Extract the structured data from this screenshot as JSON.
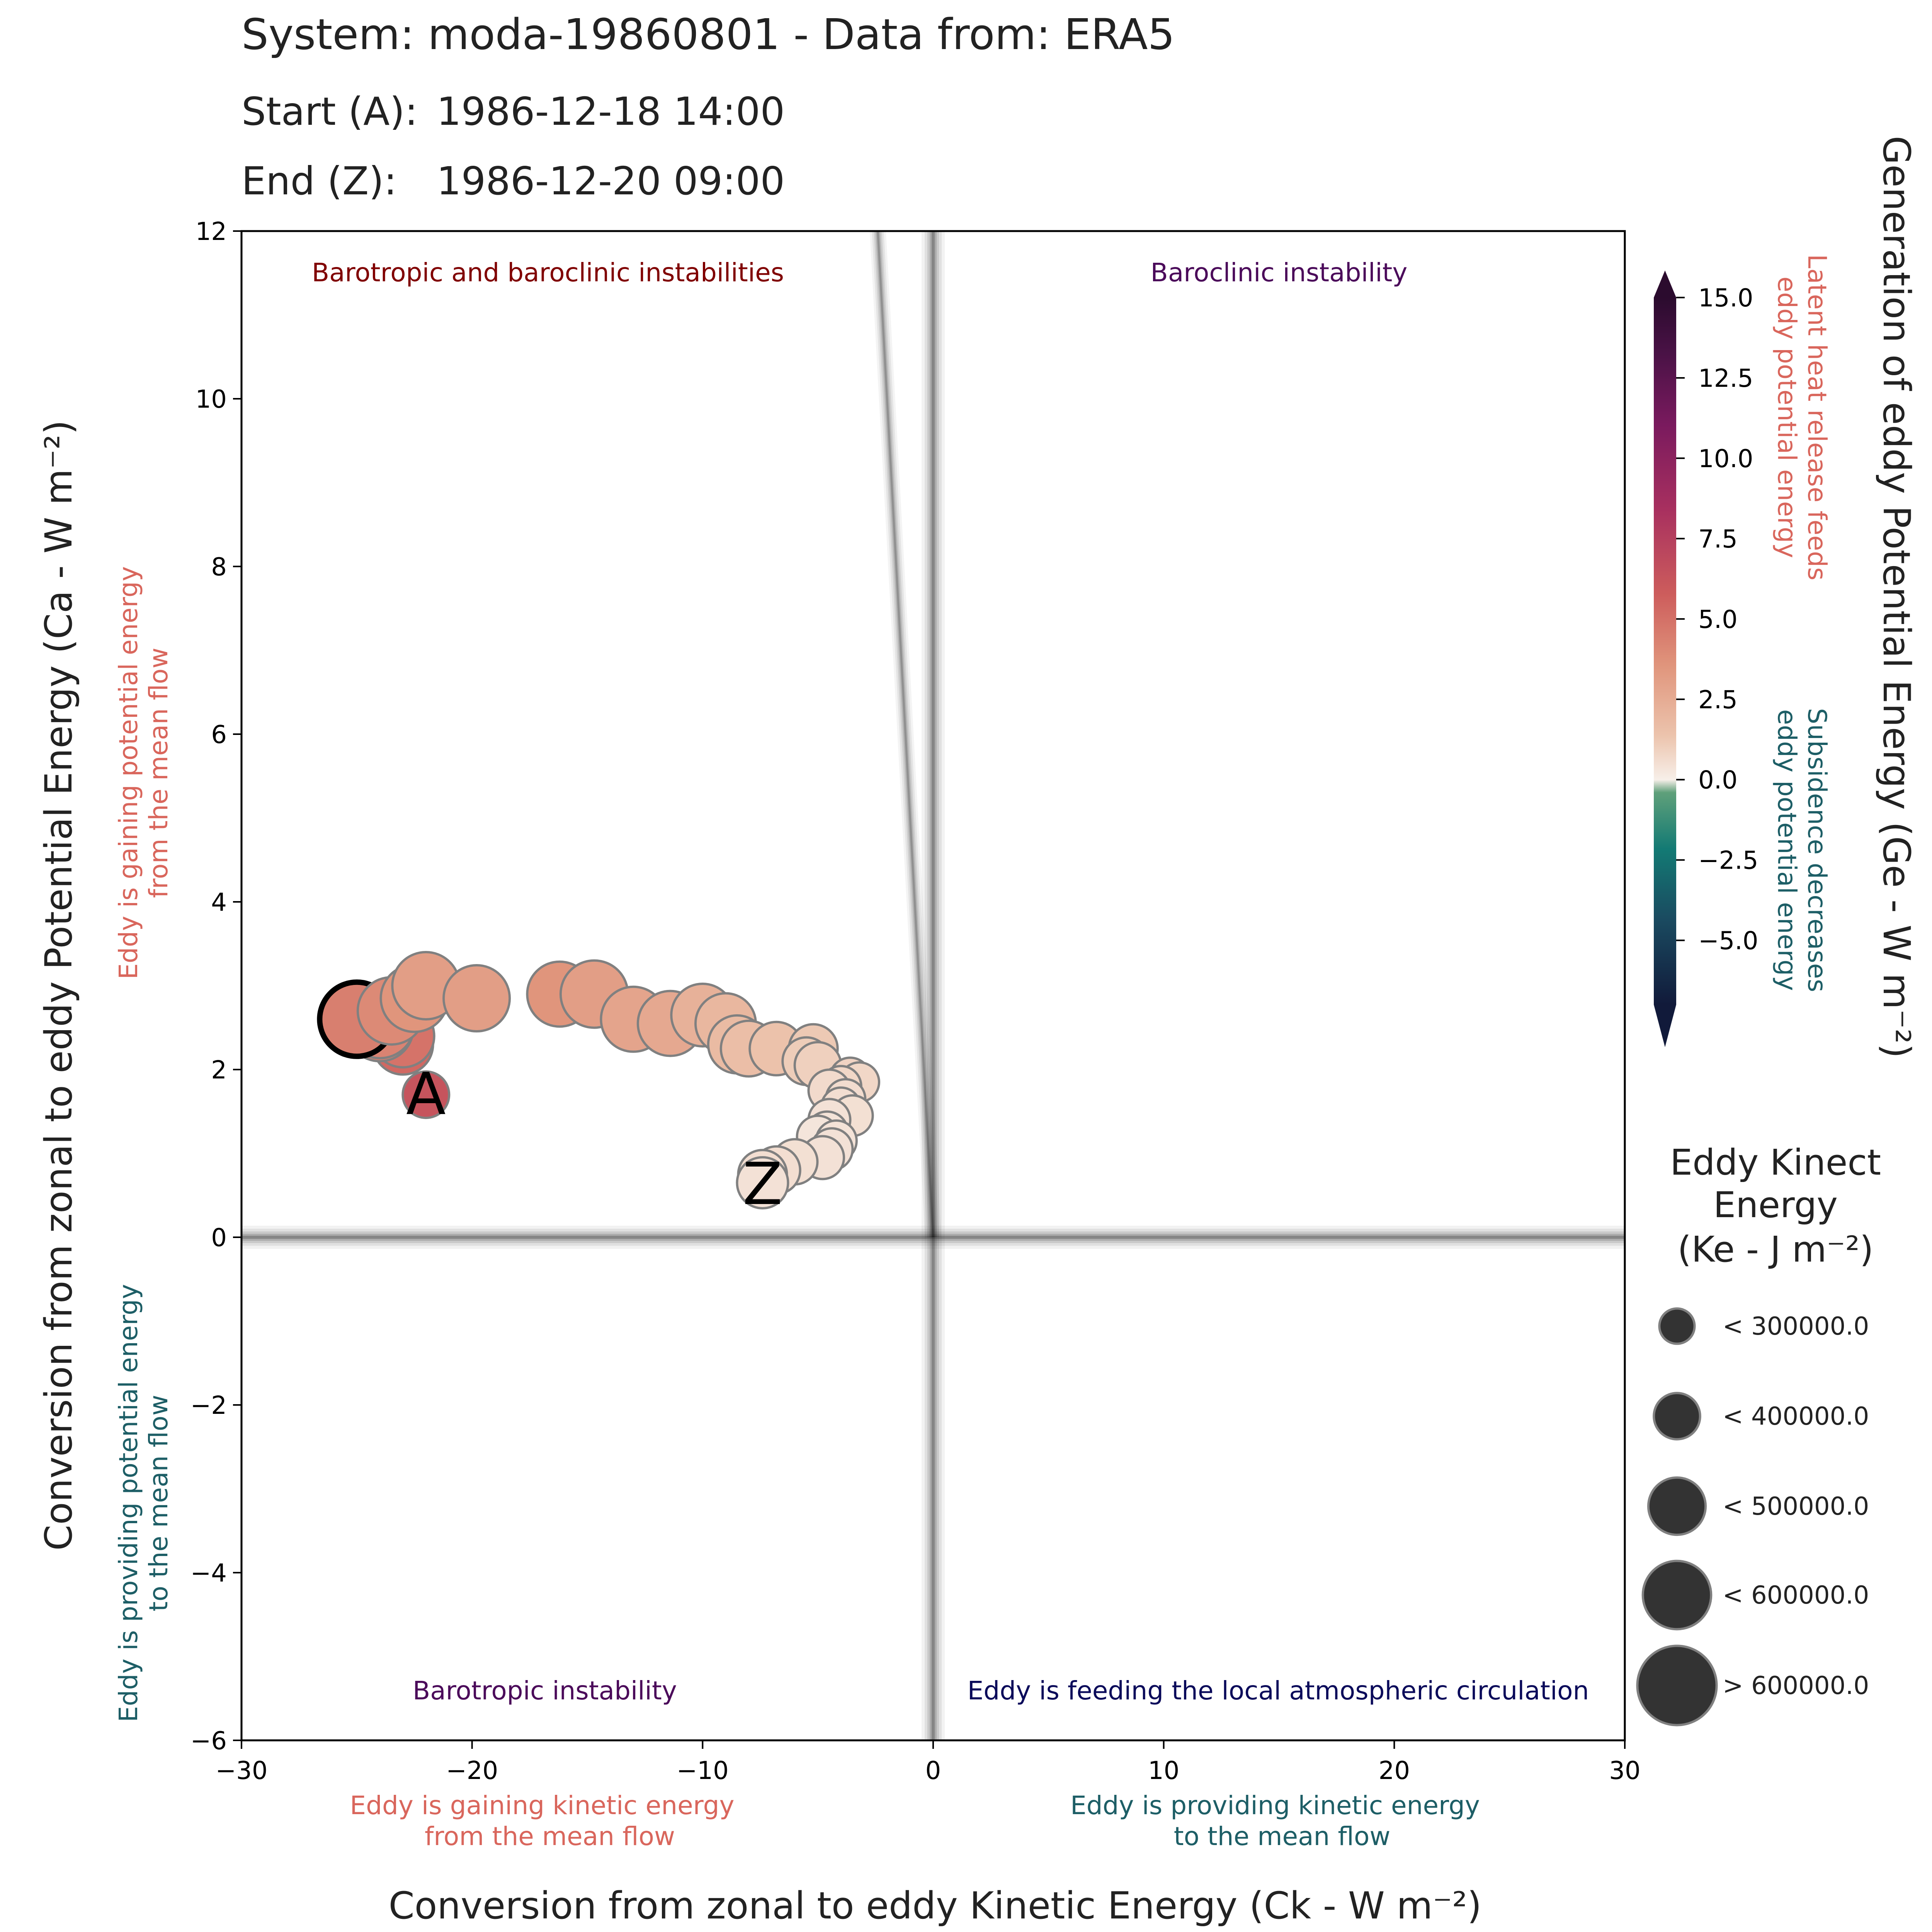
{
  "header": {
    "system_line": "System: moda-19860801 - Data from: ERA5",
    "start_label": "Start (A):",
    "start_value": "1986-12-18 14:00",
    "end_label": "End (Z):",
    "end_value": "1986-12-20 09:00"
  },
  "colors": {
    "text": "#222222",
    "warm_label": "#d9665c",
    "cool_label": "#1d5e66",
    "q1": "#800000",
    "q2": "#4b0a5a",
    "q3": "#4b0a5a",
    "q4": "#0a0a5a",
    "marker_edge": "#808080",
    "legend_fill": "#333333"
  },
  "chart_data": {
    "type": "scatter",
    "xlabel": "Conversion from zonal to eddy Kinetic Energy (Ck -  W m⁻²)",
    "ylabel": "Conversion from zonal to eddy Potential Energy (Ca -  W m⁻²)",
    "xlim": [
      -30,
      30
    ],
    "ylim": [
      -6,
      12
    ],
    "xticks": [
      -30,
      -20,
      -10,
      0,
      10,
      20,
      30
    ],
    "xtick_labels": [
      "−30",
      "−20",
      "−10",
      "0",
      "10",
      "20",
      "30"
    ],
    "yticks": [
      -6,
      -4,
      -2,
      0,
      2,
      4,
      6,
      8,
      10,
      12
    ],
    "ytick_labels": [
      "−6",
      "−4",
      "−2",
      "0",
      "2",
      "4",
      "6",
      "8",
      "10",
      "12"
    ],
    "quadrants": {
      "top_left": "Barotropic and baroclinic instabilities",
      "top_right": "Baroclinic instability",
      "bottom_left": "Barotropic instability",
      "bottom_right": "Eddy is feeding the local atmospheric circulation"
    },
    "side_notes": {
      "y_positive": [
        "Eddy is gaining potential energy",
        "from the mean flow"
      ],
      "y_negative": [
        "Eddy is providing potential energy",
        "to the mean flow"
      ],
      "x_negative": [
        "Eddy is gaining kinetic energy",
        "from the mean flow"
      ],
      "x_positive": [
        "Eddy is providing kinetic energy",
        "to the mean flow"
      ]
    },
    "trend_line": {
      "slope": -5.0,
      "intercept": 0.0
    },
    "series": [
      {
        "name": "track",
        "points": [
          {
            "ck": -22.0,
            "ca": 1.7,
            "ge": 8.0,
            "ke": 380000
          },
          {
            "ck": -23.0,
            "ca": 2.3,
            "ge": 7.0,
            "ke": 500000
          },
          {
            "ck": -23.0,
            "ca": 2.4,
            "ge": 6.5,
            "ke": 520000
          },
          {
            "ck": -24.0,
            "ca": 2.5,
            "ge": 6.0,
            "ke": 560000
          },
          {
            "ck": -24.0,
            "ca": 2.55,
            "ge": 5.8,
            "ke": 580000
          },
          {
            "ck": -25.0,
            "ca": 2.6,
            "ge": 6.0,
            "ke": 620000
          },
          {
            "ck": -23.5,
            "ca": 2.7,
            "ge": 5.5,
            "ke": 560000
          },
          {
            "ck": -22.5,
            "ca": 2.85,
            "ge": 5.0,
            "ke": 560000
          },
          {
            "ck": -22.0,
            "ca": 3.0,
            "ge": 4.5,
            "ke": 560000
          },
          {
            "ck": -19.8,
            "ca": 2.85,
            "ge": 4.5,
            "ke": 550000
          },
          {
            "ck": -16.2,
            "ca": 2.9,
            "ge": 5.0,
            "ke": 540000
          },
          {
            "ck": -14.7,
            "ca": 2.9,
            "ge": 4.5,
            "ke": 560000
          },
          {
            "ck": -13.0,
            "ca": 2.6,
            "ge": 4.2,
            "ke": 540000
          },
          {
            "ck": -11.4,
            "ca": 2.55,
            "ge": 4.0,
            "ke": 540000
          },
          {
            "ck": -10.0,
            "ca": 2.65,
            "ge": 3.5,
            "ke": 520000
          },
          {
            "ck": -9.0,
            "ca": 2.55,
            "ge": 3.2,
            "ke": 500000
          },
          {
            "ck": -8.5,
            "ca": 2.3,
            "ge": 3.0,
            "ke": 480000
          },
          {
            "ck": -8.0,
            "ca": 2.25,
            "ge": 2.8,
            "ke": 460000
          },
          {
            "ck": -6.8,
            "ca": 2.25,
            "ge": 2.6,
            "ke": 440000
          },
          {
            "ck": -5.2,
            "ca": 2.25,
            "ge": 2.2,
            "ke": 400000
          },
          {
            "ck": -5.5,
            "ca": 2.1,
            "ge": 2.0,
            "ke": 390000
          },
          {
            "ck": -5.0,
            "ca": 2.05,
            "ge": 1.8,
            "ke": 380000
          },
          {
            "ck": -3.6,
            "ca": 1.9,
            "ge": 1.6,
            "ke": 330000
          },
          {
            "ck": -3.2,
            "ca": 1.85,
            "ge": 1.4,
            "ke": 320000
          },
          {
            "ck": -4.0,
            "ca": 1.8,
            "ge": 1.4,
            "ke": 330000
          },
          {
            "ck": -4.5,
            "ca": 1.75,
            "ge": 1.2,
            "ke": 340000
          },
          {
            "ck": -3.8,
            "ca": 1.65,
            "ge": 1.1,
            "ke": 320000
          },
          {
            "ck": -4.0,
            "ca": 1.55,
            "ge": 1.0,
            "ke": 320000
          },
          {
            "ck": -3.5,
            "ca": 1.45,
            "ge": 0.9,
            "ke": 330000
          },
          {
            "ck": -4.5,
            "ca": 1.4,
            "ge": 0.8,
            "ke": 340000
          },
          {
            "ck": -4.6,
            "ca": 1.25,
            "ge": 0.7,
            "ke": 340000
          },
          {
            "ck": -5.0,
            "ca": 1.2,
            "ge": 0.6,
            "ke": 340000
          },
          {
            "ck": -4.2,
            "ca": 1.15,
            "ge": 0.7,
            "ke": 330000
          },
          {
            "ck": -4.4,
            "ca": 1.05,
            "ge": 0.8,
            "ke": 340000
          },
          {
            "ck": -4.8,
            "ca": 0.95,
            "ge": 0.8,
            "ke": 350000
          },
          {
            "ck": -6.0,
            "ca": 0.9,
            "ge": 0.9,
            "ke": 370000
          },
          {
            "ck": -6.8,
            "ca": 0.8,
            "ge": 1.0,
            "ke": 390000
          },
          {
            "ck": -7.4,
            "ca": 0.75,
            "ge": 1.0,
            "ke": 400000
          },
          {
            "ck": -7.4,
            "ca": 0.65,
            "ge": 0.8,
            "ke": 420000
          }
        ],
        "start_label": "A",
        "end_label": "Z"
      }
    ],
    "colorbar": {
      "title": "Generation of eddy Potential Energy (Ge -  W m⁻²)",
      "vmin": -7.0,
      "vmax": 15.0,
      "ticks": [
        15.0,
        12.5,
        10.0,
        7.5,
        5.0,
        2.5,
        0.0,
        -2.5,
        -5.0
      ],
      "tick_labels": [
        "15.0",
        "12.5",
        "10.0",
        "7.5",
        "5.0",
        "2.5",
        "0.0",
        "−2.5",
        "−5.0"
      ],
      "pos_note": [
        "Latent heat release feeds",
        "eddy potential energy"
      ],
      "neg_note": [
        "Subsidence decreases",
        "eddy potential energy"
      ]
    },
    "size_legend": {
      "title": [
        "Eddy Kinect",
        "Energy",
        "(Ke -  J m⁻²)"
      ],
      "entries": [
        {
          "label": "< 300000.0",
          "ke": 300000
        },
        {
          "label": "< 400000.0",
          "ke": 400000
        },
        {
          "label": "< 500000.0",
          "ke": 500000
        },
        {
          "label": "< 600000.0",
          "ke": 600000
        },
        {
          "label": "> 600000.0",
          "ke": 700000
        }
      ]
    }
  }
}
